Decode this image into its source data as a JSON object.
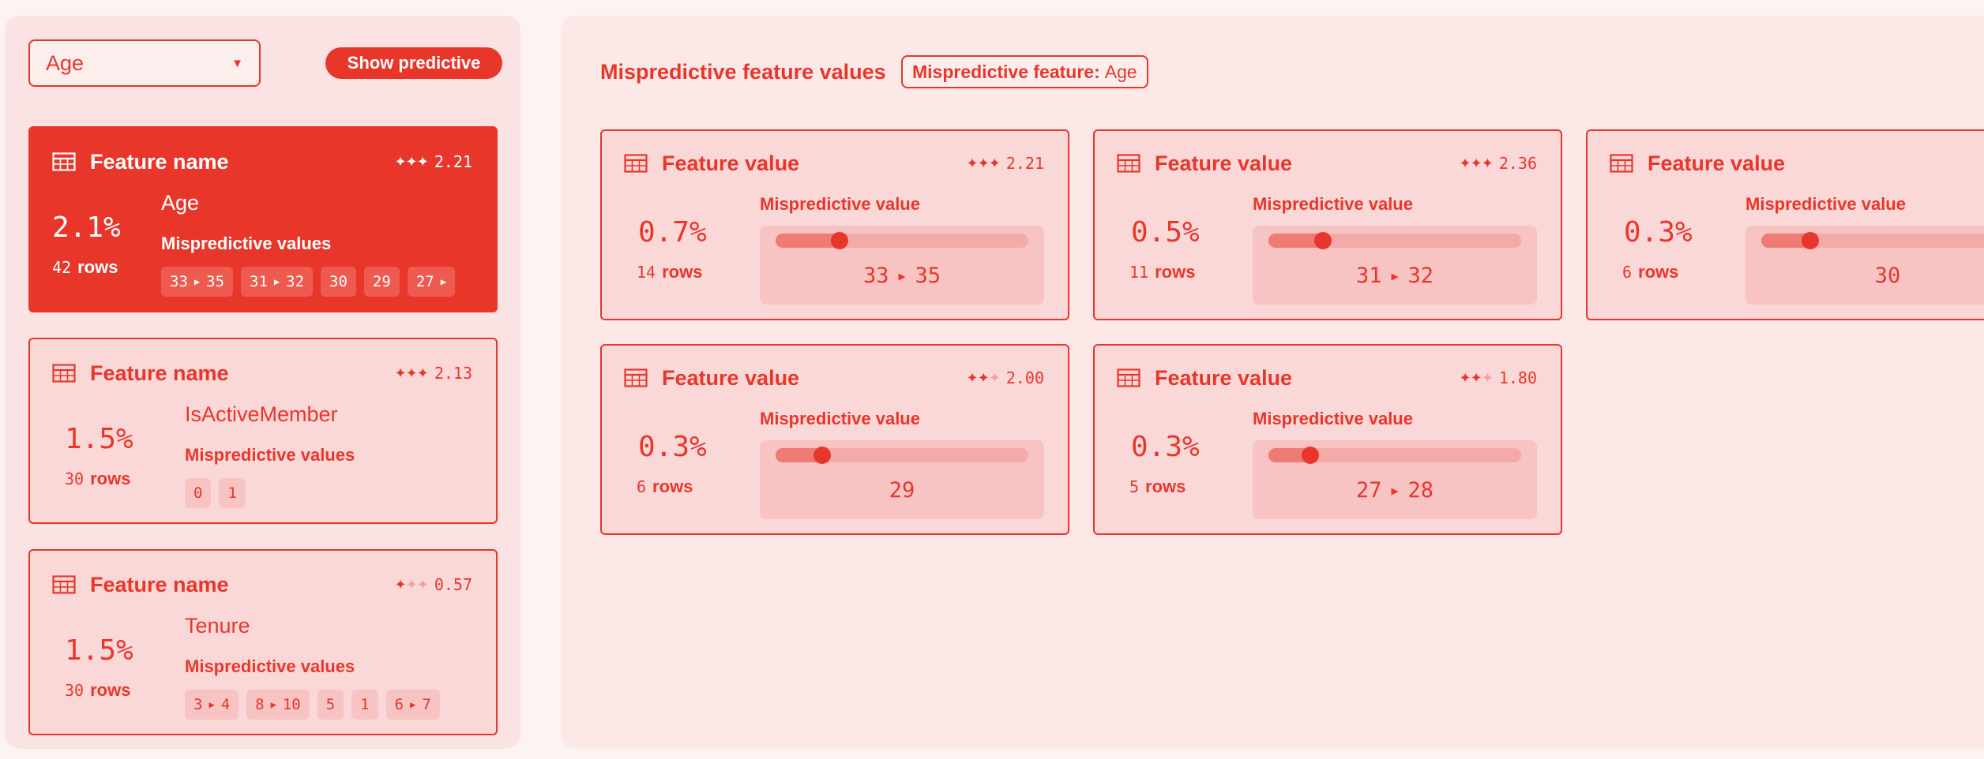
{
  "left": {
    "select": {
      "value": "Age"
    },
    "show_button": "Show predictive",
    "cards": [
      {
        "title": "Feature name",
        "score": "2.21",
        "stars_filled": 3,
        "percent": "2.1%",
        "rows_count": "42",
        "rows_label": "rows",
        "feature": "Age",
        "mv_label": "Mispredictive values",
        "chips": [
          [
            "33",
            "35"
          ],
          [
            "31",
            "32"
          ],
          [
            "30"
          ],
          [
            "29"
          ],
          [
            "27",
            ""
          ]
        ]
      },
      {
        "title": "Feature name",
        "score": "2.13",
        "stars_filled": 3,
        "percent": "1.5%",
        "rows_count": "30",
        "rows_label": "rows",
        "feature": "IsActiveMember",
        "mv_label": "Mispredictive values",
        "chips": [
          [
            "0"
          ],
          [
            "1"
          ]
        ]
      },
      {
        "title": "Feature name",
        "score": "0.57",
        "stars_filled": 1,
        "percent": "1.5%",
        "rows_count": "30",
        "rows_label": "rows",
        "feature": "Tenure",
        "mv_label": "Mispredictive values",
        "chips": [
          [
            "3",
            "4"
          ],
          [
            "8",
            "10"
          ],
          [
            "5"
          ],
          [
            "1"
          ],
          [
            "6",
            "7"
          ]
        ]
      }
    ]
  },
  "right": {
    "title": "Mispredictive feature values",
    "badge_label": "Mispredictive feature:",
    "badge_value": "Age",
    "cards": [
      {
        "title": "Feature value",
        "score": "2.21",
        "stars_filled": 3,
        "percent": "0.7%",
        "rows_count": "14",
        "rows_label": "rows",
        "mv_label": "Mispredictive value",
        "range": [
          "33",
          "35"
        ],
        "slider": 0.22
      },
      {
        "title": "Feature value",
        "score": "2.36",
        "stars_filled": 3,
        "percent": "0.5%",
        "rows_count": "11",
        "rows_label": "rows",
        "mv_label": "Mispredictive value",
        "range": [
          "31",
          "32"
        ],
        "slider": 0.18
      },
      {
        "title": "Feature value",
        "score": "",
        "stars_filled": 3,
        "percent": "0.3%",
        "rows_count": "6",
        "rows_label": "rows",
        "mv_label": "Mispredictive value",
        "range": [
          "30"
        ],
        "slider": 0.16
      },
      {
        "title": "Feature value",
        "score": "2.00",
        "stars_filled": 2,
        "percent": "0.3%",
        "rows_count": "6",
        "rows_label": "rows",
        "mv_label": "Mispredictive value",
        "range": [
          "29"
        ],
        "slider": 0.15
      },
      {
        "title": "Feature value",
        "score": "1.80",
        "stars_filled": 2,
        "percent": "0.3%",
        "rows_count": "5",
        "rows_label": "rows",
        "mv_label": "Mispredictive value",
        "range": [
          "27",
          "28"
        ],
        "slider": 0.13
      }
    ]
  },
  "icons": {
    "table": "table-grid-icon",
    "star": "sparkle-icon",
    "caret": "caret-down-icon",
    "arrow": "play-arrow-icon"
  },
  "colors": {
    "accent": "#e8362b",
    "card_bg": "#fbd8d8",
    "panel_bg": "#fde8e8"
  }
}
